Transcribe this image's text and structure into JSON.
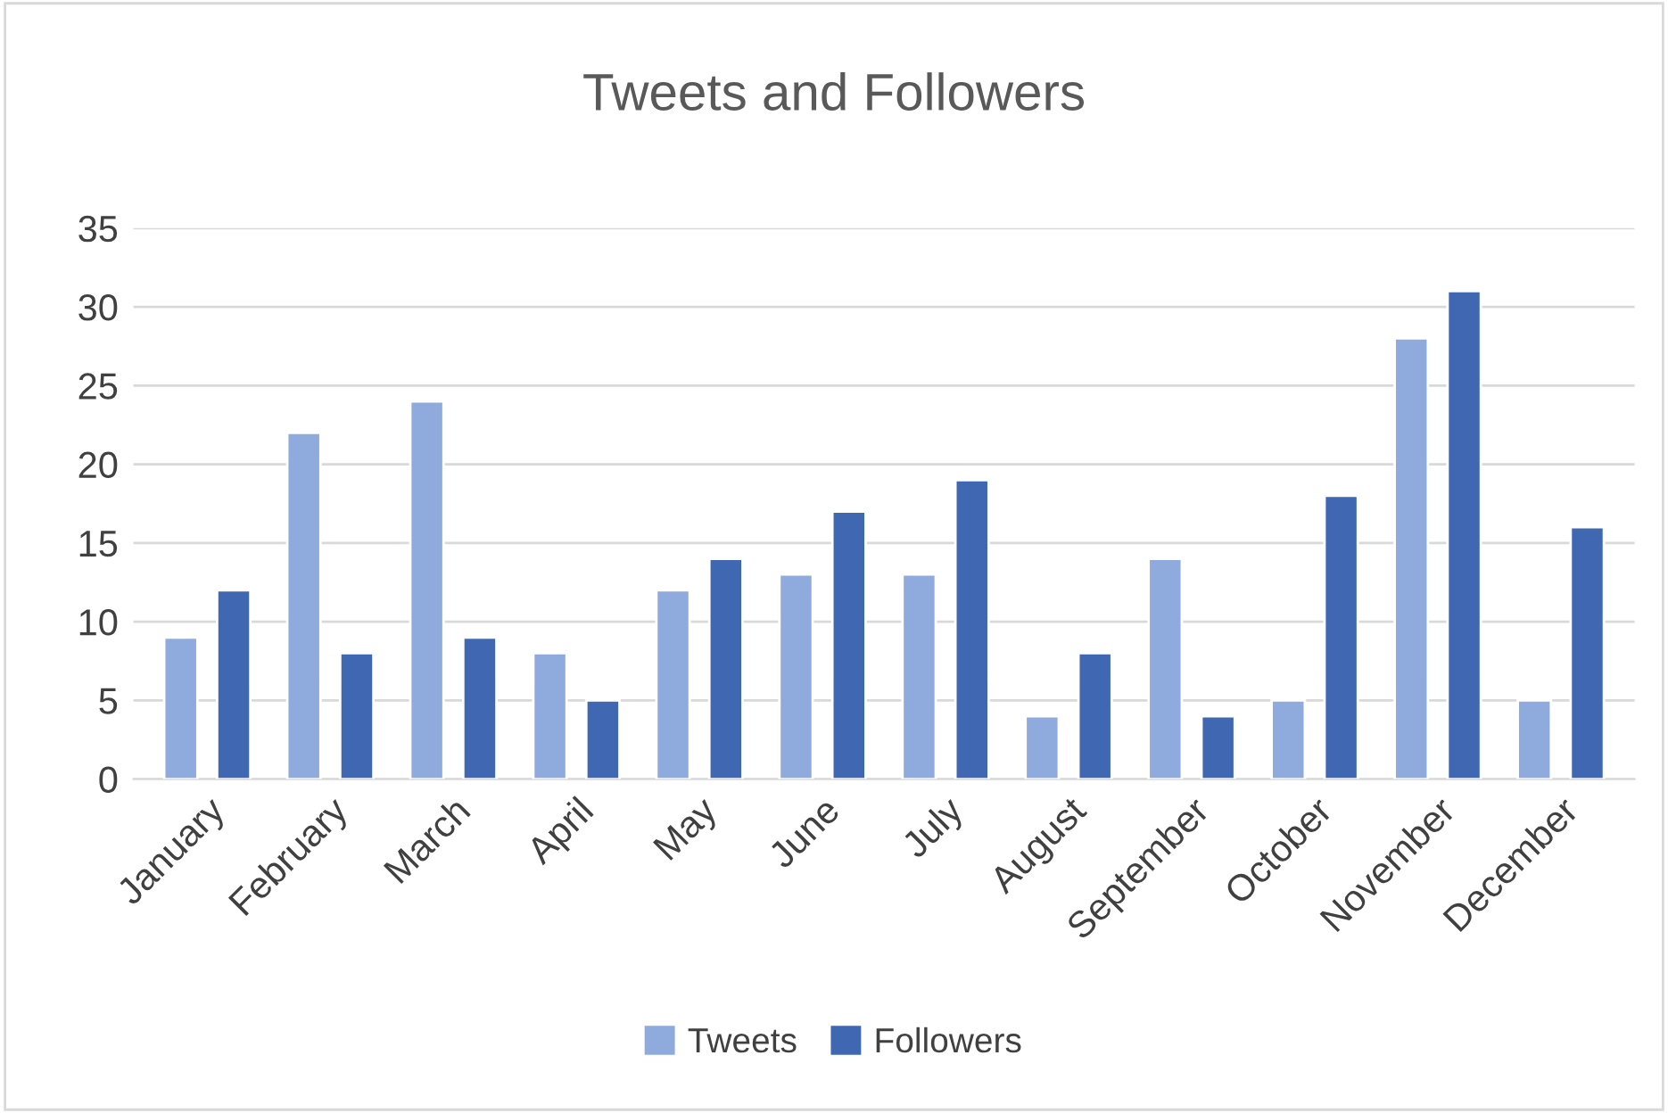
{
  "chart_data": {
    "type": "bar",
    "title": "Tweets and Followers",
    "categories": [
      "January",
      "February",
      "March",
      "April",
      "May",
      "June",
      "July",
      "August",
      "September",
      "October",
      "November",
      "December"
    ],
    "series": [
      {
        "name": "Tweets",
        "color": "#8faadc",
        "values": [
          9,
          22,
          24,
          8,
          12,
          13,
          13,
          4,
          14,
          5,
          28,
          5
        ]
      },
      {
        "name": "Followers",
        "color": "#4068b2",
        "values": [
          12,
          8,
          9,
          5,
          14,
          17,
          19,
          8,
          4,
          18,
          31,
          16
        ]
      }
    ],
    "ylim": [
      0,
      35
    ],
    "yticks": [
      0,
      5,
      10,
      15,
      20,
      25,
      30,
      35
    ],
    "grid": "y",
    "legend": "bottom"
  }
}
